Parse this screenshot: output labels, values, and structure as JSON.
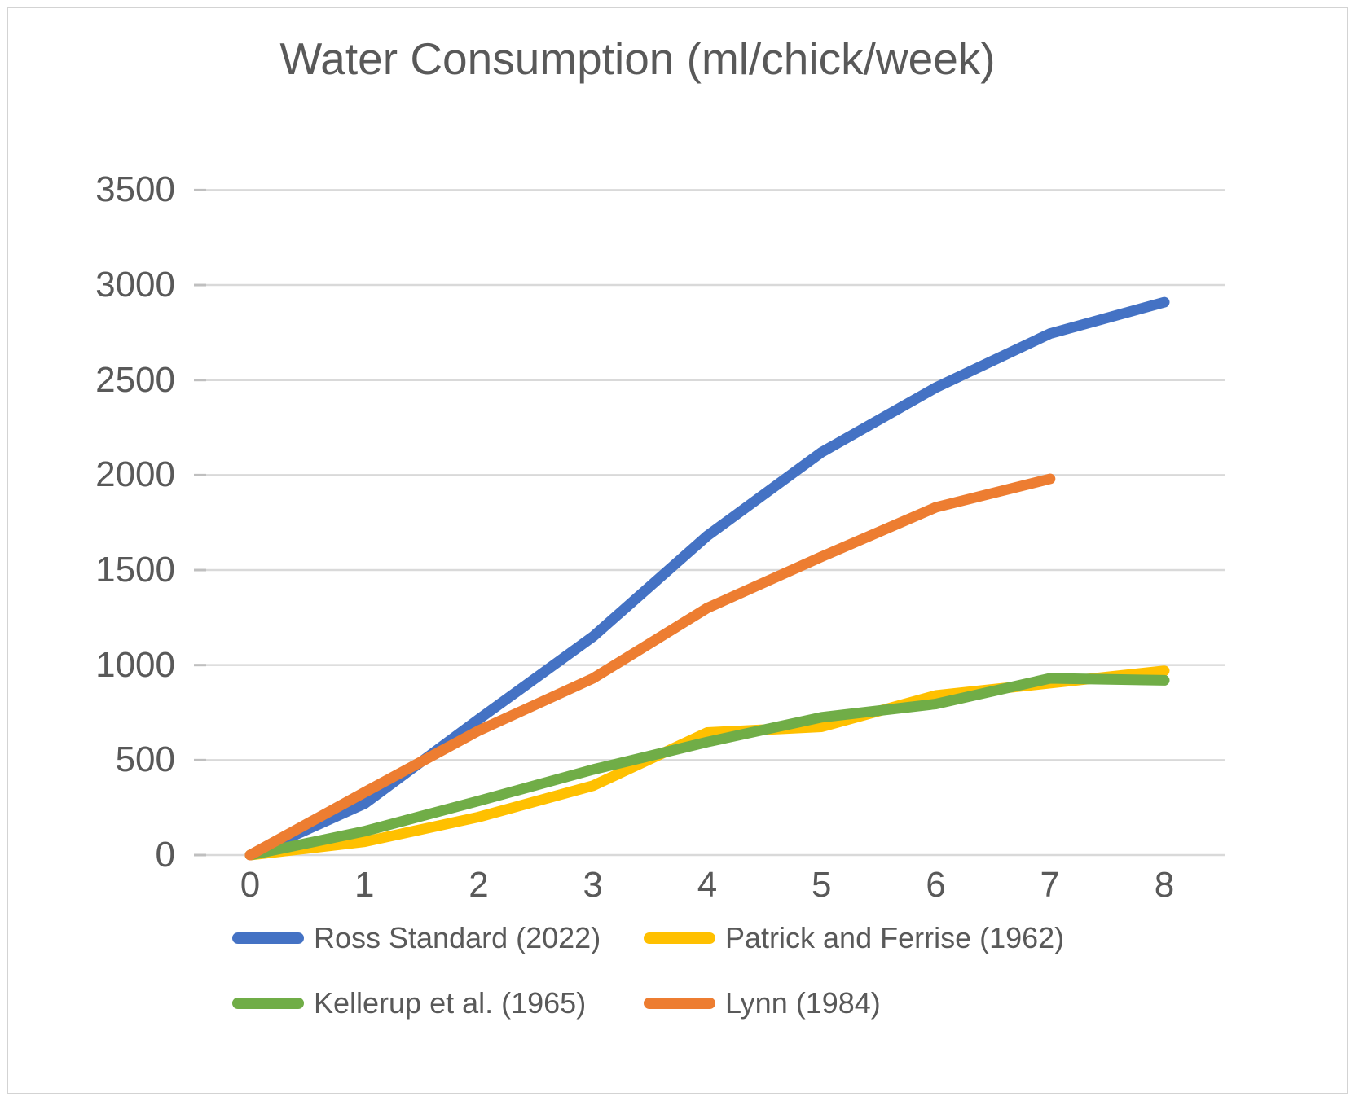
{
  "chart_data": {
    "type": "line",
    "title": "Water Consumption (ml/chick/week)",
    "xlabel": "",
    "ylabel": "",
    "x": [
      0,
      1,
      2,
      3,
      4,
      5,
      6,
      7,
      8
    ],
    "series": [
      {
        "name": "Ross Standard (2022)",
        "color": "#4472C4",
        "x": [
          0,
          1,
          2,
          3,
          4,
          5,
          6,
          7,
          8
        ],
        "values": [
          0,
          270,
          715,
          1150,
          1680,
          2120,
          2460,
          2745,
          2910
        ]
      },
      {
        "name": "Patrick and Ferrise (1962)",
        "color": "#FFC000",
        "x": [
          0,
          1,
          2,
          3,
          4,
          5,
          6,
          7,
          8
        ],
        "values": [
          0,
          70,
          200,
          365,
          645,
          675,
          840,
          905,
          970
        ]
      },
      {
        "name": "Kellerup et al. (1965)",
        "color": "#70AD47",
        "x": [
          0,
          1,
          2,
          3,
          4,
          5,
          6,
          7,
          8
        ],
        "values": [
          0,
          125,
          285,
          450,
          595,
          725,
          795,
          930,
          920
        ]
      },
      {
        "name": "Lynn (1984)",
        "color": "#ED7D31",
        "x": [
          0,
          1,
          2,
          3,
          4,
          5,
          6,
          7
        ],
        "values": [
          0,
          330,
          655,
          930,
          1300,
          1570,
          1830,
          1980
        ]
      }
    ],
    "ylim": [
      0,
      3500
    ],
    "yticks": [
      0,
      500,
      1000,
      1500,
      2000,
      2500,
      3000,
      3500
    ],
    "xticks": [
      0,
      1,
      2,
      3,
      4,
      5,
      6,
      7,
      8
    ],
    "grid": true,
    "gridlines": "horizontal",
    "legend_position": "bottom",
    "legend_columns": 2,
    "legend_order": [
      "Ross Standard (2022)",
      "Patrick and Ferrise (1962)",
      "Kellerup et al. (1965)",
      "Lynn (1984)"
    ]
  },
  "styles": {
    "text_color": "#595959",
    "gridline_color": "#D9D9D9",
    "tick_color": "#BFBFBF",
    "border_color": "#D3D3D3",
    "background": "#FFFFFF"
  }
}
